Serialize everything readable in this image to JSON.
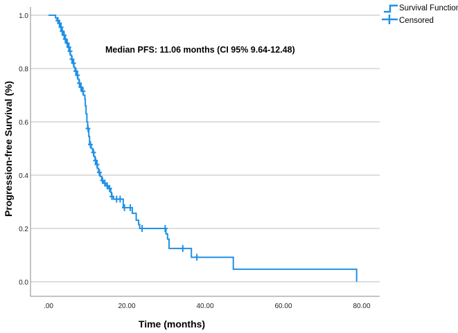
{
  "chart_data": {
    "type": "line",
    "subtype": "kaplan-meier",
    "title": "",
    "annotation": "Median PFS: 11.06 months (CI 95% 9.64-12.48)",
    "xlabel": "Time (months)",
    "ylabel": "Progression-free Survival (%)",
    "xlim": [
      -4.5,
      84
    ],
    "ylim": [
      -0.055,
      1.07
    ],
    "xticks": [
      0,
      20,
      40,
      60,
      80
    ],
    "xtick_labels": [
      ".00",
      "20.00",
      "40.00",
      "60.00",
      "80.00"
    ],
    "yticks": [
      0,
      0.2,
      0.4,
      0.6,
      0.8,
      1.0
    ],
    "ytick_labels": [
      "0.0",
      "0.2",
      "0.4",
      "0.6",
      "0.8",
      "1.0"
    ],
    "grid": "horizontal",
    "legend_position": "top-right",
    "legend": [
      "Survival Function",
      "Censored"
    ],
    "color": "#1e90e6",
    "series": [
      {
        "name": "Survival Function",
        "steps": [
          [
            0,
            1.0
          ],
          [
            1.8,
            0.99
          ],
          [
            2.2,
            0.98
          ],
          [
            2.6,
            0.97
          ],
          [
            3.0,
            0.955
          ],
          [
            3.3,
            0.94
          ],
          [
            3.7,
            0.925
          ],
          [
            4.1,
            0.91
          ],
          [
            4.5,
            0.895
          ],
          [
            4.9,
            0.88
          ],
          [
            5.3,
            0.865
          ],
          [
            5.6,
            0.85
          ],
          [
            5.9,
            0.835
          ],
          [
            6.2,
            0.82
          ],
          [
            6.5,
            0.805
          ],
          [
            6.8,
            0.79
          ],
          [
            7.1,
            0.775
          ],
          [
            7.5,
            0.76
          ],
          [
            7.8,
            0.745
          ],
          [
            8.1,
            0.73
          ],
          [
            8.5,
            0.715
          ],
          [
            8.9,
            0.7
          ],
          [
            9.3,
            0.685
          ],
          [
            9.4,
            0.66
          ],
          [
            9.6,
            0.63
          ],
          [
            9.8,
            0.6
          ],
          [
            10.0,
            0.575
          ],
          [
            10.3,
            0.545
          ],
          [
            10.5,
            0.515
          ],
          [
            10.9,
            0.5
          ],
          [
            11.3,
            0.485
          ],
          [
            11.6,
            0.47
          ],
          [
            11.9,
            0.455
          ],
          [
            12.2,
            0.44
          ],
          [
            12.5,
            0.425
          ],
          [
            12.8,
            0.41
          ],
          [
            13.2,
            0.395
          ],
          [
            13.6,
            0.38
          ],
          [
            14.0,
            0.37
          ],
          [
            14.6,
            0.36
          ],
          [
            15.2,
            0.35
          ],
          [
            15.9,
            0.335
          ],
          [
            16.1,
            0.32
          ],
          [
            16.6,
            0.31
          ],
          [
            19.1,
            0.278
          ],
          [
            21.4,
            0.257
          ],
          [
            22.4,
            0.231
          ],
          [
            23.0,
            0.215
          ],
          [
            23.3,
            0.2
          ],
          [
            30.0,
            0.18
          ],
          [
            30.4,
            0.16
          ],
          [
            30.8,
            0.125
          ],
          [
            36.5,
            0.092
          ],
          [
            47.2,
            0.047
          ],
          [
            78.7,
            0.0
          ]
        ]
      },
      {
        "name": "Censored",
        "times": [
          2.4,
          2.8,
          3.2,
          3.5,
          4.0,
          4.3,
          4.8,
          5.2,
          5.5,
          6.0,
          6.4,
          7.0,
          7.4,
          7.9,
          8.3,
          8.8,
          10.1,
          10.7,
          11.5,
          12.0,
          12.4,
          13.0,
          13.8,
          14.4,
          15.0,
          15.6,
          16.2,
          17.4,
          18.3,
          19.4,
          20.9,
          23.9,
          29.8,
          34.3,
          37.9
        ]
      }
    ]
  }
}
